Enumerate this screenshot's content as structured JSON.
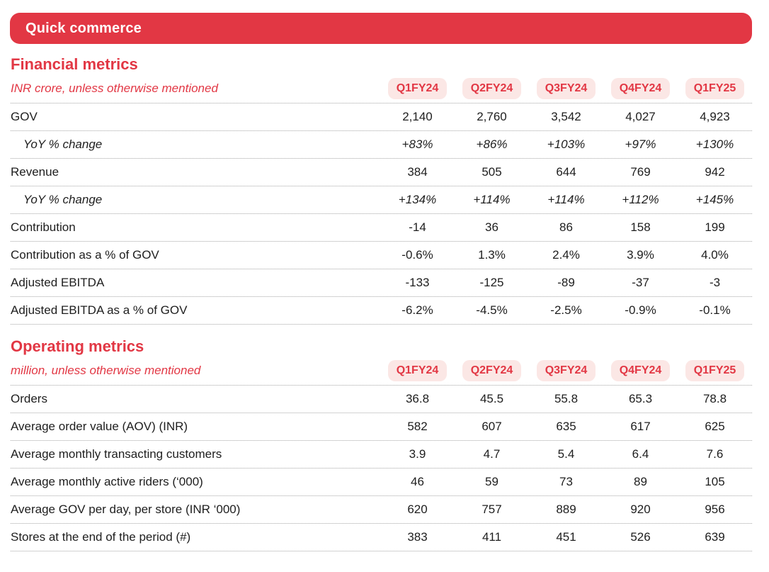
{
  "banner": {
    "title": "Quick commerce"
  },
  "columns": [
    "Q1FY24",
    "Q2FY24",
    "Q3FY24",
    "Q4FY24",
    "Q1FY25"
  ],
  "colors": {
    "brand_red": "#E23744",
    "pill_background": "#FBE7E5",
    "text_dark": "#1e1e1e",
    "divider_gray": "#a6a6a6"
  },
  "financial": {
    "heading": "Financial metrics",
    "subtitle": "INR crore, unless otherwise mentioned",
    "rows": [
      {
        "label": "GOV",
        "values": [
          "2,140",
          "2,760",
          "3,542",
          "4,027",
          "4,923"
        ]
      },
      {
        "label": "YoY % change",
        "values": [
          "+83%",
          "+86%",
          "+103%",
          "+97%",
          "+130%"
        ]
      },
      {
        "label": "Revenue",
        "values": [
          "384",
          "505",
          "644",
          "769",
          "942"
        ]
      },
      {
        "label": "YoY % change",
        "values": [
          "+134%",
          "+114%",
          "+114%",
          "+112%",
          "+145%"
        ]
      },
      {
        "label": "Contribution",
        "values": [
          "-14",
          "36",
          "86",
          "158",
          "199"
        ]
      },
      {
        "label": "Contribution as a % of GOV",
        "values": [
          "-0.6%",
          "1.3%",
          "2.4%",
          "3.9%",
          "4.0%"
        ]
      },
      {
        "label": "Adjusted EBITDA",
        "values": [
          "-133",
          "-125",
          "-89",
          "-37",
          "-3"
        ]
      },
      {
        "label": "Adjusted EBITDA as a % of GOV",
        "values": [
          "-6.2%",
          "-4.5%",
          "-2.5%",
          "-0.9%",
          "-0.1%"
        ]
      }
    ]
  },
  "operating": {
    "heading": "Operating metrics",
    "subtitle": "million, unless otherwise mentioned",
    "rows": [
      {
        "label": "Orders",
        "values": [
          "36.8",
          "45.5",
          "55.8",
          "65.3",
          "78.8"
        ]
      },
      {
        "label": "Average order value (AOV) (INR)",
        "values": [
          "582",
          "607",
          "635",
          "617",
          "625"
        ]
      },
      {
        "label": "Average monthly transacting customers",
        "values": [
          "3.9",
          "4.7",
          "5.4",
          "6.4",
          "7.6"
        ]
      },
      {
        "label": "Average monthly active riders (‘000)",
        "values": [
          "46",
          "59",
          "73",
          "89",
          "105"
        ]
      },
      {
        "label": "Average GOV per day, per store (INR ‘000)",
        "values": [
          "620",
          "757",
          "889",
          "920",
          "956"
        ]
      },
      {
        "label": "Stores at the end of the period (#)",
        "values": [
          "383",
          "411",
          "451",
          "526",
          "639"
        ]
      }
    ]
  }
}
